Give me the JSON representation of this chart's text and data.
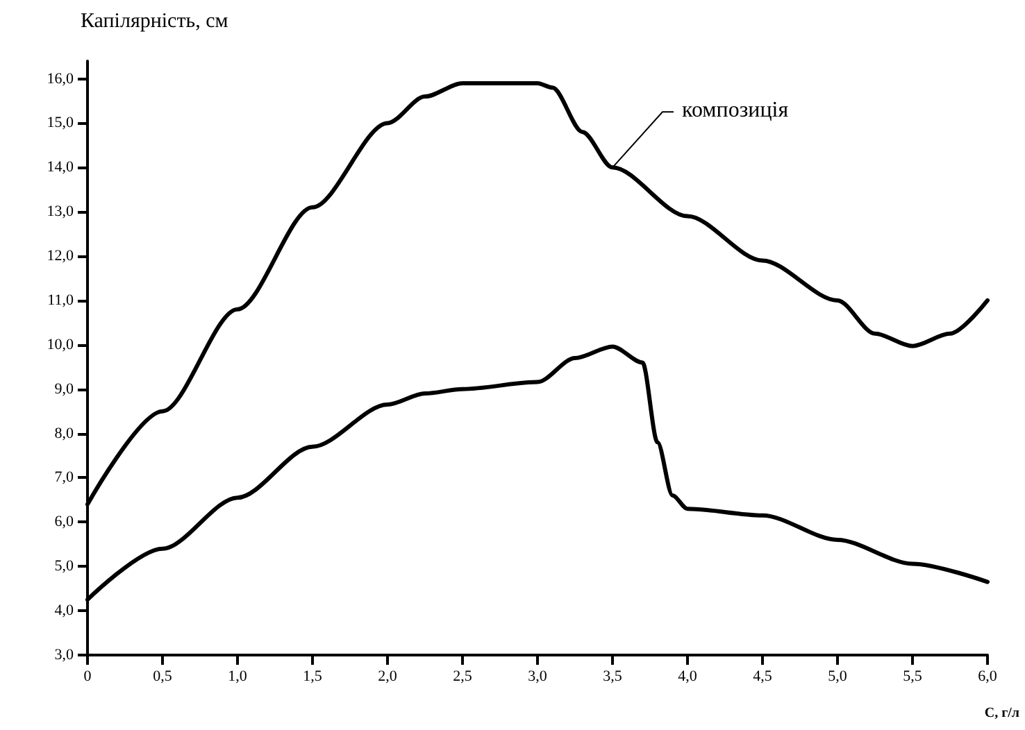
{
  "chart_data": {
    "type": "line",
    "ylabel": "Капілярність, см",
    "xlabel": "С, г/л",
    "xlim": [
      0,
      6
    ],
    "ylim": [
      3,
      16.4
    ],
    "xticks": [
      0,
      {
        "value": 0.5,
        "label": "0,5"
      },
      {
        "value": 1,
        "label": "1,0"
      },
      {
        "value": 1.5,
        "label": "1,5"
      },
      {
        "value": 2,
        "label": "2,0"
      },
      {
        "value": 2.5,
        "label": "2,5"
      },
      {
        "value": 3,
        "label": "3,0"
      },
      {
        "value": 3.5,
        "label": "3,5"
      },
      {
        "value": 4,
        "label": "4,0"
      },
      {
        "value": 4.5,
        "label": "4,5"
      },
      {
        "value": 5,
        "label": "5,0"
      },
      {
        "value": 5.5,
        "label": "5,5"
      },
      {
        "value": 6,
        "label": "6,0"
      }
    ],
    "yticks": [
      {
        "value": 3,
        "label": "3,0"
      },
      {
        "value": 4,
        "label": "4,0"
      },
      {
        "value": 5,
        "label": "5,0"
      },
      {
        "value": 6,
        "label": "6,0"
      },
      {
        "value": 7,
        "label": "7,0"
      },
      {
        "value": 8,
        "label": "8,0"
      },
      {
        "value": 9,
        "label": "9,0"
      },
      {
        "value": 10,
        "label": "10,0"
      },
      {
        "value": 11,
        "label": "11,0"
      },
      {
        "value": 12,
        "label": "12,0"
      },
      {
        "value": 13,
        "label": "13,0"
      },
      {
        "value": 14,
        "label": "14,0"
      },
      {
        "value": 15,
        "label": "15,0"
      },
      {
        "value": 16,
        "label": "16,0"
      }
    ],
    "grid": false,
    "legend": false,
    "marker": "none",
    "line_style": "solid",
    "series": [
      {
        "name": "композиція",
        "color": "#000000",
        "x": [
          0,
          0.5,
          1,
          1.5,
          2,
          2.25,
          2.5,
          3,
          3.1,
          3.3,
          3.5,
          4,
          4.5,
          5,
          5.25,
          5.5,
          5.75,
          6
        ],
        "values": [
          6.4,
          8.5,
          10.8,
          13.1,
          15.0,
          15.6,
          15.9,
          15.9,
          15.8,
          14.8,
          14.0,
          12.9,
          11.9,
          11.0,
          10.25,
          9.97,
          10.25,
          11.0
        ]
      },
      {
        "color": "#000000",
        "x": [
          0,
          0.5,
          1,
          1.5,
          2,
          2.25,
          2.5,
          3,
          3.25,
          3.5,
          3.7,
          3.8,
          3.9,
          4,
          4.5,
          5,
          5.5,
          6
        ],
        "values": [
          4.25,
          5.4,
          6.55,
          7.7,
          8.65,
          8.9,
          9.0,
          9.16,
          9.7,
          9.96,
          9.6,
          7.8,
          6.6,
          6.3,
          6.15,
          5.6,
          5.06,
          4.65
        ]
      }
    ]
  }
}
